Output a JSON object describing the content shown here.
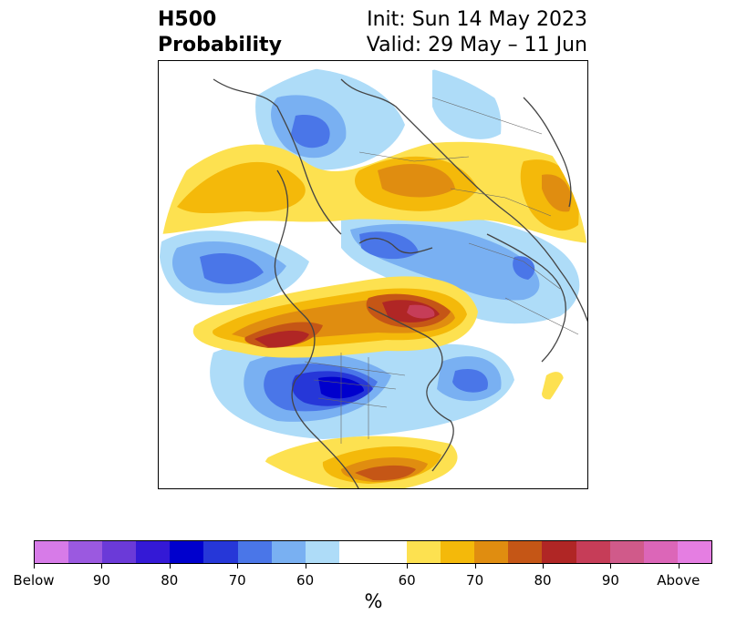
{
  "header": {
    "title_line1": "H500",
    "title_line2": "Probability",
    "init_text": "Init: Sun 14 May 2023",
    "valid_text": "Valid: 29 May – 11 Jun"
  },
  "colorbar": {
    "colors": [
      "#d77be8",
      "#9b59e0",
      "#6b3ad8",
      "#3419d6",
      "#0000cd",
      "#2637d8",
      "#4a76e8",
      "#79b0f2",
      "#aedcf8",
      "#ffffff",
      "#ffffff",
      "#fde150",
      "#f4b90a",
      "#e08d10",
      "#c55616",
      "#b02625",
      "#c63d58",
      "#d05a8a",
      "#dc66b8",
      "#e57ee2"
    ],
    "labels": [
      "Below",
      "90",
      "80",
      "70",
      "60",
      "60",
      "70",
      "80",
      "90",
      "Above"
    ],
    "units": "%"
  },
  "map": {
    "legend_categories": [
      "below-normal",
      "above-normal"
    ]
  }
}
